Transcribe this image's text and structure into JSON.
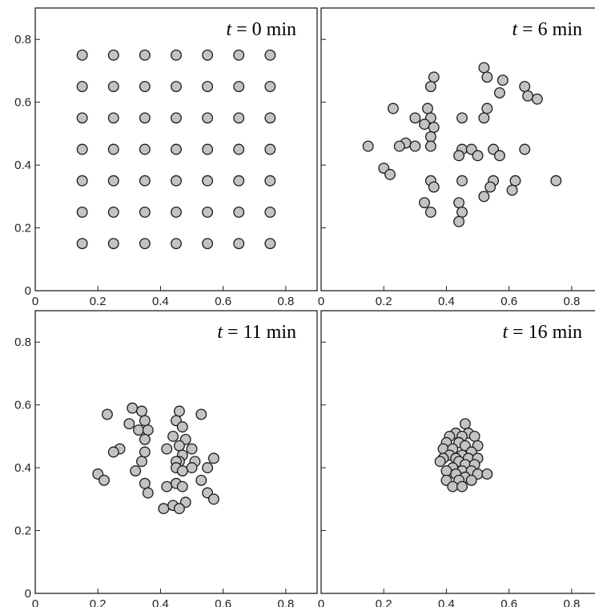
{
  "chart_data": [
    {
      "type": "scatter",
      "title": "t = 0 min",
      "title_var": "t",
      "title_rest": " = 0 min",
      "xlim": [
        0,
        0.9
      ],
      "ylim": [
        0,
        0.9
      ],
      "xticks": [
        "0",
        "0.2",
        "0.4",
        "0.6",
        "0.8"
      ],
      "yticks": [
        "0",
        "0.2",
        "0.4",
        "0.6",
        "0.8"
      ],
      "marker_color": "#c3c3c3",
      "points": [
        [
          0.15,
          0.75
        ],
        [
          0.25,
          0.75
        ],
        [
          0.35,
          0.75
        ],
        [
          0.45,
          0.75
        ],
        [
          0.55,
          0.75
        ],
        [
          0.65,
          0.75
        ],
        [
          0.75,
          0.75
        ],
        [
          0.15,
          0.65
        ],
        [
          0.25,
          0.65
        ],
        [
          0.35,
          0.65
        ],
        [
          0.45,
          0.65
        ],
        [
          0.55,
          0.65
        ],
        [
          0.65,
          0.65
        ],
        [
          0.75,
          0.65
        ],
        [
          0.15,
          0.55
        ],
        [
          0.25,
          0.55
        ],
        [
          0.35,
          0.55
        ],
        [
          0.45,
          0.55
        ],
        [
          0.55,
          0.55
        ],
        [
          0.65,
          0.55
        ],
        [
          0.75,
          0.55
        ],
        [
          0.15,
          0.45
        ],
        [
          0.25,
          0.45
        ],
        [
          0.35,
          0.45
        ],
        [
          0.45,
          0.45
        ],
        [
          0.55,
          0.45
        ],
        [
          0.65,
          0.45
        ],
        [
          0.75,
          0.45
        ],
        [
          0.15,
          0.35
        ],
        [
          0.25,
          0.35
        ],
        [
          0.35,
          0.35
        ],
        [
          0.45,
          0.35
        ],
        [
          0.55,
          0.35
        ],
        [
          0.65,
          0.35
        ],
        [
          0.75,
          0.35
        ],
        [
          0.15,
          0.25
        ],
        [
          0.25,
          0.25
        ],
        [
          0.35,
          0.25
        ],
        [
          0.45,
          0.25
        ],
        [
          0.55,
          0.25
        ],
        [
          0.65,
          0.25
        ],
        [
          0.75,
          0.25
        ],
        [
          0.15,
          0.15
        ],
        [
          0.25,
          0.15
        ],
        [
          0.35,
          0.15
        ],
        [
          0.45,
          0.15
        ],
        [
          0.55,
          0.15
        ],
        [
          0.65,
          0.15
        ],
        [
          0.75,
          0.15
        ]
      ]
    },
    {
      "type": "scatter",
      "title": "t = 6 min",
      "title_var": "t",
      "title_rest": " = 6 min",
      "xlim": [
        0,
        0.9
      ],
      "ylim": [
        0,
        0.9
      ],
      "xticks": [
        "0",
        "0.2",
        "0.4",
        "0.6",
        "0.8"
      ],
      "yticks": [],
      "marker_color": "#c3c3c3",
      "points": [
        [
          0.52,
          0.71
        ],
        [
          0.53,
          0.68
        ],
        [
          0.36,
          0.68
        ],
        [
          0.58,
          0.67
        ],
        [
          0.65,
          0.65
        ],
        [
          0.35,
          0.65
        ],
        [
          0.66,
          0.62
        ],
        [
          0.69,
          0.61
        ],
        [
          0.57,
          0.63
        ],
        [
          0.23,
          0.58
        ],
        [
          0.34,
          0.58
        ],
        [
          0.53,
          0.58
        ],
        [
          0.3,
          0.55
        ],
        [
          0.35,
          0.55
        ],
        [
          0.45,
          0.55
        ],
        [
          0.52,
          0.55
        ],
        [
          0.33,
          0.53
        ],
        [
          0.36,
          0.52
        ],
        [
          0.35,
          0.49
        ],
        [
          0.27,
          0.47
        ],
        [
          0.3,
          0.46
        ],
        [
          0.15,
          0.46
        ],
        [
          0.25,
          0.46
        ],
        [
          0.35,
          0.46
        ],
        [
          0.45,
          0.45
        ],
        [
          0.48,
          0.45
        ],
        [
          0.55,
          0.45
        ],
        [
          0.65,
          0.45
        ],
        [
          0.44,
          0.43
        ],
        [
          0.5,
          0.43
        ],
        [
          0.57,
          0.43
        ],
        [
          0.2,
          0.39
        ],
        [
          0.22,
          0.37
        ],
        [
          0.35,
          0.35
        ],
        [
          0.45,
          0.35
        ],
        [
          0.55,
          0.35
        ],
        [
          0.62,
          0.35
        ],
        [
          0.75,
          0.35
        ],
        [
          0.36,
          0.33
        ],
        [
          0.54,
          0.33
        ],
        [
          0.61,
          0.32
        ],
        [
          0.52,
          0.3
        ],
        [
          0.33,
          0.28
        ],
        [
          0.44,
          0.28
        ],
        [
          0.35,
          0.25
        ],
        [
          0.45,
          0.25
        ],
        [
          0.44,
          0.22
        ]
      ]
    },
    {
      "type": "scatter",
      "title": "t = 11 min",
      "title_var": "t",
      "title_rest": " = 11 min",
      "xlim": [
        0,
        0.9
      ],
      "ylim": [
        0,
        0.9
      ],
      "xticks": [
        "0",
        "0.2",
        "0.4",
        "0.6",
        "0.8"
      ],
      "yticks": [
        "0",
        "0.2",
        "0.4",
        "0.6",
        "0.8"
      ],
      "marker_color": "#c3c3c3",
      "points": [
        [
          0.31,
          0.59
        ],
        [
          0.34,
          0.58
        ],
        [
          0.46,
          0.58
        ],
        [
          0.23,
          0.57
        ],
        [
          0.53,
          0.57
        ],
        [
          0.35,
          0.55
        ],
        [
          0.45,
          0.55
        ],
        [
          0.3,
          0.54
        ],
        [
          0.33,
          0.52
        ],
        [
          0.36,
          0.52
        ],
        [
          0.47,
          0.53
        ],
        [
          0.35,
          0.49
        ],
        [
          0.44,
          0.5
        ],
        [
          0.48,
          0.49
        ],
        [
          0.46,
          0.47
        ],
        [
          0.27,
          0.46
        ],
        [
          0.25,
          0.45
        ],
        [
          0.35,
          0.45
        ],
        [
          0.42,
          0.46
        ],
        [
          0.5,
          0.46
        ],
        [
          0.47,
          0.44
        ],
        [
          0.46,
          0.42
        ],
        [
          0.45,
          0.42
        ],
        [
          0.51,
          0.42
        ],
        [
          0.57,
          0.43
        ],
        [
          0.34,
          0.42
        ],
        [
          0.32,
          0.39
        ],
        [
          0.5,
          0.4
        ],
        [
          0.45,
          0.4
        ],
        [
          0.47,
          0.39
        ],
        [
          0.55,
          0.4
        ],
        [
          0.2,
          0.38
        ],
        [
          0.22,
          0.36
        ],
        [
          0.53,
          0.36
        ],
        [
          0.35,
          0.35
        ],
        [
          0.42,
          0.34
        ],
        [
          0.45,
          0.35
        ],
        [
          0.47,
          0.34
        ],
        [
          0.36,
          0.32
        ],
        [
          0.55,
          0.32
        ],
        [
          0.57,
          0.3
        ],
        [
          0.48,
          0.29
        ],
        [
          0.41,
          0.27
        ],
        [
          0.44,
          0.28
        ],
        [
          0.46,
          0.27
        ]
      ]
    },
    {
      "type": "scatter",
      "title": "t = 16 min",
      "title_var": "t",
      "title_rest": " = 16 min",
      "xlim": [
        0,
        0.9
      ],
      "ylim": [
        0,
        0.9
      ],
      "xticks": [
        "0",
        "0.2",
        "0.4",
        "0.6",
        "0.8"
      ],
      "yticks": [],
      "marker_color": "#c3c3c3",
      "points": [
        [
          0.46,
          0.54
        ],
        [
          0.43,
          0.51
        ],
        [
          0.47,
          0.51
        ],
        [
          0.41,
          0.5
        ],
        [
          0.45,
          0.5
        ],
        [
          0.49,
          0.5
        ],
        [
          0.4,
          0.48
        ],
        [
          0.44,
          0.48
        ],
        [
          0.46,
          0.47
        ],
        [
          0.5,
          0.47
        ],
        [
          0.39,
          0.46
        ],
        [
          0.42,
          0.46
        ],
        [
          0.48,
          0.45
        ],
        [
          0.45,
          0.44
        ],
        [
          0.41,
          0.44
        ],
        [
          0.39,
          0.43
        ],
        [
          0.43,
          0.43
        ],
        [
          0.47,
          0.43
        ],
        [
          0.5,
          0.43
        ],
        [
          0.44,
          0.42
        ],
        [
          0.38,
          0.42
        ],
        [
          0.46,
          0.41
        ],
        [
          0.49,
          0.41
        ],
        [
          0.42,
          0.4
        ],
        [
          0.45,
          0.39
        ],
        [
          0.48,
          0.39
        ],
        [
          0.4,
          0.39
        ],
        [
          0.43,
          0.38
        ],
        [
          0.5,
          0.38
        ],
        [
          0.53,
          0.38
        ],
        [
          0.46,
          0.37
        ],
        [
          0.4,
          0.36
        ],
        [
          0.44,
          0.36
        ],
        [
          0.48,
          0.36
        ],
        [
          0.42,
          0.34
        ],
        [
          0.45,
          0.34
        ]
      ]
    }
  ]
}
